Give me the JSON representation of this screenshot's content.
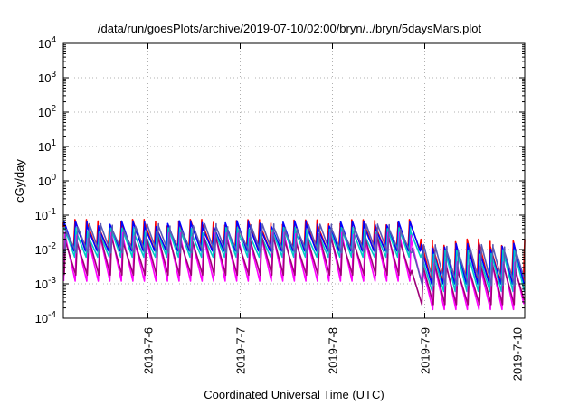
{
  "chart_data": {
    "type": "line",
    "title": "/data/run/goesPlots/archive/2019-07-10/02:00/bryn/../bryn/5daysMars.plot",
    "xlabel": "Coordinated Universal Time (UTC)",
    "ylabel": "cGy/day",
    "yscale": "log",
    "ylim": [
      0.0001,
      10000
    ],
    "xlim": [
      "2019-07-05 02:00",
      "2019-07-10 02:00"
    ],
    "grid": true,
    "legend": "none",
    "x_ticks": [
      "2019-7-6",
      "2019-7-7",
      "2019-7-8",
      "2019-7-9",
      "2019-7-10"
    ],
    "y_ticks": [
      {
        "base": "10",
        "exp": "-4"
      },
      {
        "base": "10",
        "exp": "-3"
      },
      {
        "base": "10",
        "exp": "-2"
      },
      {
        "base": "10",
        "exp": "-1"
      },
      {
        "base": "10",
        "exp": "0"
      },
      {
        "base": "10",
        "exp": "1"
      },
      {
        "base": "10",
        "exp": "2"
      },
      {
        "base": "10",
        "exp": "3"
      },
      {
        "base": "10",
        "exp": "4"
      }
    ],
    "cycle_hours": 3,
    "regime_change": "2019-07-08 20:30",
    "series": [
      {
        "color": "#ff0000",
        "peak_before": 0.06,
        "trough_before": 0.01,
        "peak_after": 0.016,
        "trough_after": 0.0012
      },
      {
        "color": "#0000ff",
        "peak_before": 0.055,
        "trough_before": 0.009,
        "peak_after": 0.012,
        "trough_after": 0.001
      },
      {
        "color": "#00c8c8",
        "peak_before": 0.035,
        "trough_before": 0.006,
        "peak_after": 0.008,
        "trough_after": 0.0006
      },
      {
        "color": "#ff00ff",
        "peak_before": 0.025,
        "trough_before": 0.0012,
        "peak_after": 0.0035,
        "trough_after": 0.00018
      },
      {
        "color": "#a00078",
        "peak_before": 0.02,
        "trough_before": 0.0018,
        "peak_after": 0.003,
        "trough_after": 0.00025
      },
      {
        "color": "#5a5ab4",
        "peak_before": 0.045,
        "trough_before": 0.008,
        "peak_after": 0.011,
        "trough_after": 0.0009
      }
    ]
  }
}
